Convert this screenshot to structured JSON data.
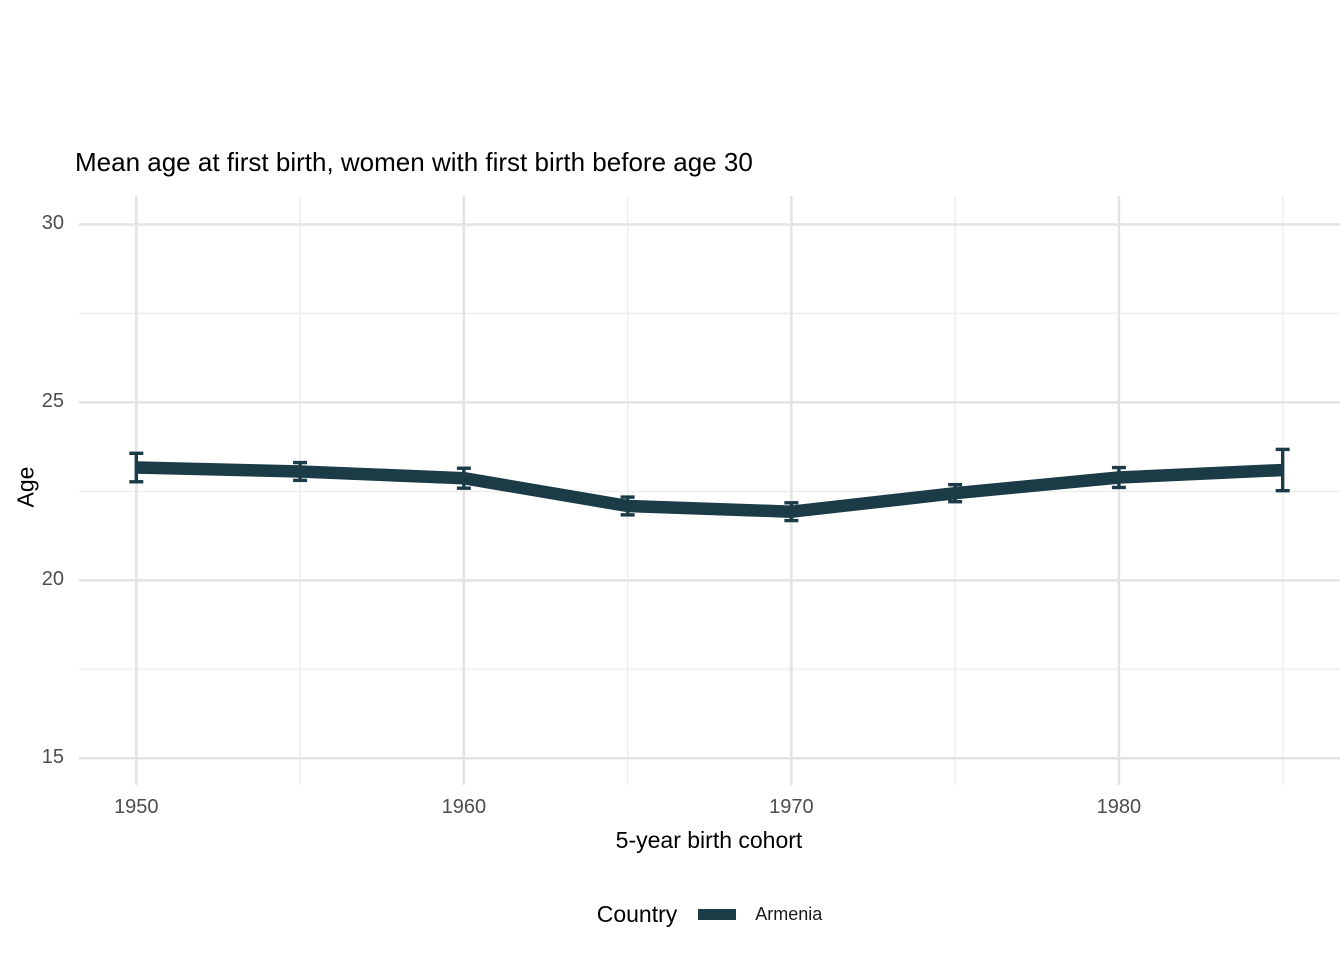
{
  "title": "Mean age at first birth, women with first birth before age 30",
  "axes": {
    "x_title": "5-year birth cohort",
    "y_title": "Age"
  },
  "legend": {
    "title": "Country",
    "items": [
      {
        "label": "Armenia",
        "color": "#1b3b47",
        "swatch_type": "line"
      }
    ]
  },
  "colors": {
    "series": "#1b3b47",
    "grid_major": "#e3e3e3",
    "grid_minor": "#efefef",
    "tick_label": "#4d4d4d",
    "text": "#000000",
    "background": "#ffffff"
  },
  "chart_data": {
    "type": "line",
    "title": "Mean age at first birth, women with first birth before age 30",
    "xlabel": "5-year birth cohort",
    "ylabel": "Age",
    "x": [
      1950,
      1955,
      1960,
      1965,
      1970,
      1975,
      1980,
      1985
    ],
    "series": [
      {
        "name": "Armenia",
        "values": [
          23.17,
          23.06,
          22.87,
          22.09,
          21.93,
          22.45,
          22.89,
          23.1
        ],
        "error": [
          0.4,
          0.25,
          0.28,
          0.25,
          0.25,
          0.24,
          0.28,
          0.58
        ],
        "color": "#1b3b47"
      }
    ],
    "error_bars": true,
    "xlim": [
      1948.25,
      1986.75
    ],
    "ylim": [
      14.25,
      30.8
    ],
    "x_ticks": [
      1950,
      1960,
      1970,
      1980
    ],
    "x_minor_ticks": [
      1955,
      1965,
      1975,
      1985
    ],
    "y_ticks": [
      15,
      20,
      25,
      30
    ],
    "y_minor_ticks": [
      17.5,
      22.5,
      27.5
    ],
    "grid": "major+minor",
    "legend_position": "bottom",
    "legend_title": "Country"
  }
}
